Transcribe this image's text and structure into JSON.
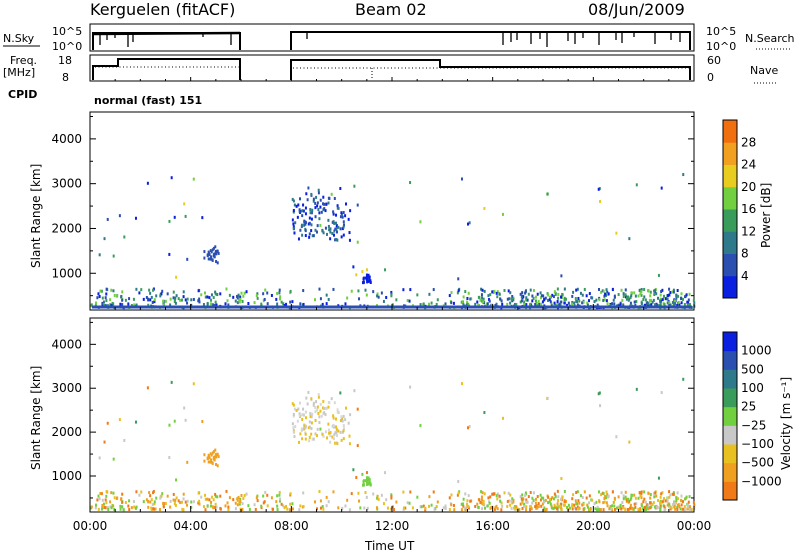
{
  "header": {
    "station": "Kerguelen (fitACF)",
    "beam": "Beam 02",
    "date": "08/Jun/2009"
  },
  "status": {
    "nsky_label": "N.Sky",
    "nsky_ticks": [
      "10^5",
      "10^0"
    ],
    "nsearch_label": "N.Search",
    "nsearch_ticks": [
      "10^5",
      "10^0"
    ],
    "freq_label_1": "Freq.",
    "freq_label_2": "[MHz]",
    "freq_ticks": [
      "18",
      "8"
    ],
    "nave_label": "Nave",
    "nave_ticks": [
      "60",
      "0"
    ],
    "cpid_label": "CPID",
    "cpid_text": "normal (fast) 151"
  },
  "colors": {
    "power": [
      "#0a1fe0",
      "#2b4fb0",
      "#2f7a8a",
      "#3a9c5a",
      "#72d040",
      "#e8cc1f",
      "#f2a020",
      "#f07010",
      "#e63a10",
      "#e01010"
    ],
    "velocity": [
      "#e01010",
      "#f04a18",
      "#f07a18",
      "#f0a020",
      "#e8c020",
      "#c8c8c8",
      "#72d040",
      "#3a9c5a",
      "#2f7a8a",
      "#2b4fb0",
      "#0a1fe0"
    ]
  },
  "chart_data": [
    {
      "type": "heatmap",
      "title": "",
      "xlabel": "Time UT",
      "ylabel": "Slant Range [km]",
      "x_ticks": [
        "00:00",
        "04:00",
        "08:00",
        "12:00",
        "16:00",
        "20:00",
        "00:00"
      ],
      "y_ticks": [
        "1000",
        "2000",
        "3000",
        "4000"
      ],
      "xlim": [
        0,
        24
      ],
      "ylim": [
        180,
        4600
      ],
      "colorbar_label": "Power [dB]",
      "colorbar_ticks": [
        "4",
        "8",
        "12",
        "16",
        "20",
        "24",
        "28"
      ],
      "colorbar_range": [
        0,
        30
      ]
    },
    {
      "type": "heatmap",
      "title": "",
      "xlabel": "Time UT",
      "ylabel": "Slant Range [km]",
      "x_ticks": [
        "00:00",
        "04:00",
        "08:00",
        "12:00",
        "16:00",
        "20:00",
        "00:00"
      ],
      "y_ticks": [
        "1000",
        "2000",
        "3000",
        "4000"
      ],
      "xlim": [
        0,
        24
      ],
      "ylim": [
        180,
        4600
      ],
      "colorbar_label": "Velocity [m s⁻¹]",
      "colorbar_ticks": [
        "1000",
        "500",
        "100",
        "25",
        "−25",
        "−100",
        "−500",
        "−1000"
      ]
    }
  ]
}
